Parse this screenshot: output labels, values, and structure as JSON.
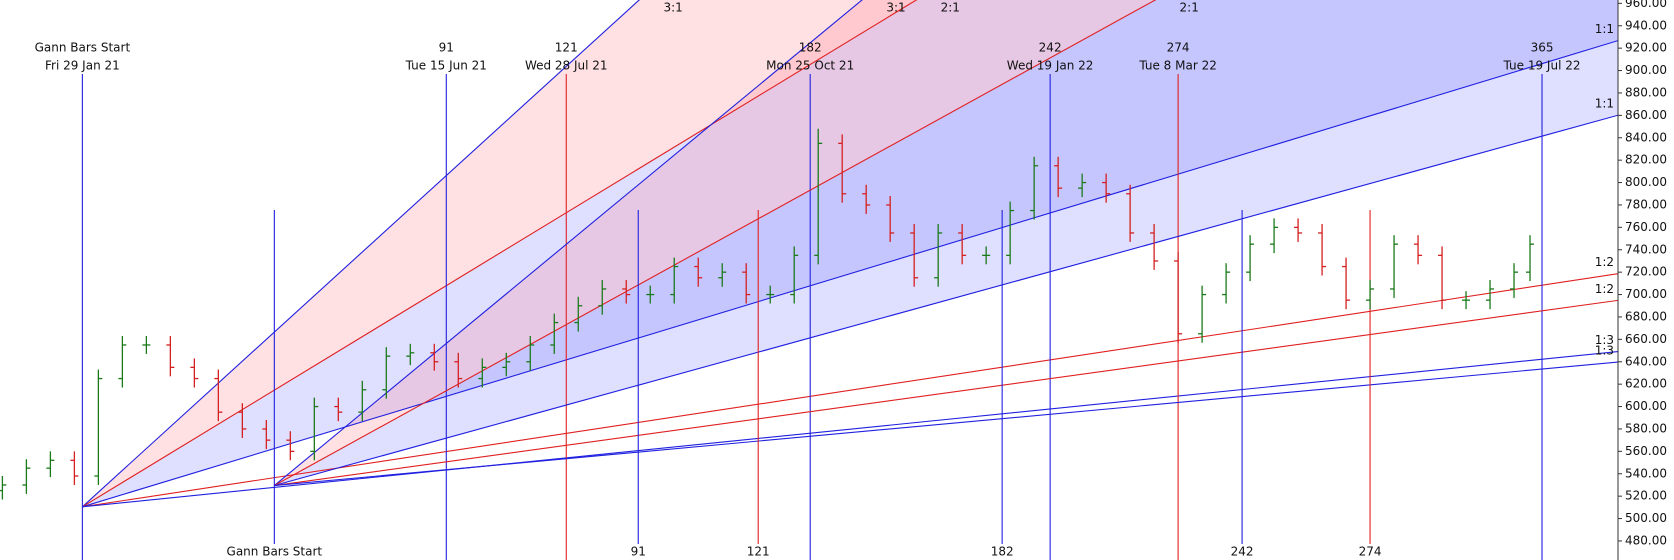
{
  "chart_data": {
    "type": "ohlc",
    "xlim": [
      -20.6,
      384
    ],
    "ylim": [
      463,
      963
    ],
    "yticks": [
      {
        "value": 480,
        "label": "480.00"
      },
      {
        "value": 500,
        "label": "500.00"
      },
      {
        "value": 520,
        "label": "520.00"
      },
      {
        "value": 540,
        "label": "540.00"
      },
      {
        "value": 560,
        "label": "560.00"
      },
      {
        "value": 580,
        "label": "580.00"
      },
      {
        "value": 600,
        "label": "600.00"
      },
      {
        "value": 620,
        "label": "620.00"
      },
      {
        "value": 640,
        "label": "640.00"
      },
      {
        "value": 660,
        "label": "660.00"
      },
      {
        "value": 680,
        "label": "680.00"
      },
      {
        "value": 700,
        "label": "700.00"
      },
      {
        "value": 720,
        "label": "720.00"
      },
      {
        "value": 740,
        "label": "740.00"
      },
      {
        "value": 760,
        "label": "760.00"
      },
      {
        "value": 780,
        "label": "780.00"
      },
      {
        "value": 800,
        "label": "800.00"
      },
      {
        "value": 820,
        "label": "820.00"
      },
      {
        "value": 840,
        "label": "840.00"
      },
      {
        "value": 860,
        "label": "860.00"
      },
      {
        "value": 880,
        "label": "880.00"
      },
      {
        "value": 900,
        "label": "900.00"
      },
      {
        "value": 920,
        "label": "920.00"
      },
      {
        "value": 940,
        "label": "940.00"
      },
      {
        "value": 960,
        "label": "960.00"
      }
    ],
    "up_color": "#1a7a1a",
    "down_color": "#d42020",
    "x": [
      -20,
      -14,
      -8,
      -2,
      4,
      10,
      16,
      22,
      28,
      34,
      40,
      46,
      52,
      58,
      64,
      70,
      76,
      82,
      88,
      94,
      100,
      106,
      112,
      118,
      124,
      130,
      136,
      142,
      148,
      154,
      160,
      166,
      172,
      178,
      184,
      190,
      196,
      202,
      208,
      214,
      220,
      226,
      232,
      238,
      244,
      250,
      256,
      262,
      268,
      274,
      280,
      286,
      292,
      298,
      304,
      310,
      316,
      322,
      328,
      334,
      340,
      346,
      352,
      358,
      362
    ],
    "open": [
      525,
      530,
      545,
      552,
      538,
      625,
      655,
      655,
      635,
      625,
      595,
      580,
      570,
      560,
      600,
      595,
      615,
      645,
      648,
      640,
      625,
      635,
      640,
      655,
      675,
      690,
      705,
      700,
      700,
      725,
      715,
      720,
      700,
      700,
      735,
      835,
      790,
      780,
      755,
      715,
      755,
      735,
      735,
      775,
      815,
      795,
      800,
      790,
      755,
      730,
      665,
      700,
      720,
      745,
      760,
      755,
      725,
      695,
      705,
      745,
      735,
      695,
      695,
      705,
      720
    ],
    "high": [
      538,
      553,
      560,
      560,
      633,
      663,
      663,
      663,
      643,
      633,
      603,
      588,
      578,
      608,
      608,
      623,
      653,
      656,
      656,
      648,
      643,
      648,
      663,
      683,
      698,
      713,
      713,
      708,
      733,
      733,
      728,
      728,
      708,
      743,
      848,
      843,
      798,
      788,
      763,
      763,
      763,
      743,
      783,
      823,
      823,
      808,
      808,
      798,
      763,
      738,
      708,
      728,
      753,
      768,
      768,
      763,
      733,
      713,
      753,
      753,
      743,
      703,
      713,
      728,
      753
    ],
    "low": [
      517,
      522,
      537,
      530,
      530,
      617,
      647,
      627,
      617,
      587,
      572,
      562,
      552,
      552,
      587,
      587,
      607,
      637,
      632,
      617,
      617,
      627,
      632,
      647,
      667,
      682,
      692,
      692,
      692,
      707,
      707,
      692,
      692,
      692,
      727,
      782,
      772,
      747,
      707,
      707,
      727,
      727,
      727,
      767,
      787,
      787,
      782,
      747,
      722,
      657,
      657,
      692,
      712,
      737,
      747,
      717,
      687,
      687,
      697,
      727,
      687,
      687,
      687,
      697,
      712
    ],
    "close": [
      530,
      545,
      552,
      538,
      625,
      655,
      655,
      635,
      625,
      595,
      580,
      570,
      560,
      600,
      595,
      615,
      645,
      648,
      640,
      625,
      635,
      640,
      655,
      675,
      690,
      705,
      700,
      700,
      725,
      715,
      720,
      700,
      700,
      735,
      835,
      790,
      780,
      755,
      715,
      755,
      735,
      735,
      775,
      815,
      795,
      800,
      790,
      755,
      730,
      665,
      700,
      720,
      745,
      760,
      755,
      725,
      695,
      705,
      745,
      735,
      695,
      695,
      705,
      720,
      745
    ],
    "fans": [
      {
        "start_x": 0,
        "start_y": 510.5,
        "label_position": "top",
        "lines": [
          {
            "label": "3:1",
            "slope": 3.25,
            "color": "#2020e0",
            "fill": "rgba(255,120,130,0.22)"
          },
          {
            "label": "2:1",
            "slope": 2.17,
            "color": "#e02020",
            "fill": "rgba(110,110,255,0.22)"
          },
          {
            "label": "1:1",
            "slope": 1.084,
            "color": "#2020e0"
          },
          {
            "label": "1:2",
            "slope": 0.542,
            "color": "#e02020"
          },
          {
            "label": "1:3",
            "slope": 0.361,
            "color": "#2020e0"
          }
        ],
        "verticals": [
          {
            "bar": {
              "value": 0,
              "label": "Gann Bars Start"
            },
            "date": "Fri 29 Jan 21",
            "color": "#2020e0"
          },
          {
            "bar": 91,
            "date": "Tue 15 Jun 21",
            "color": "#2020e0"
          },
          {
            "bar": 121,
            "date": "Wed 28 Jul 21",
            "color": "#e02020"
          },
          {
            "bar": 182,
            "date": "Mon 25 Oct 21",
            "color": "#2020e0"
          },
          {
            "bar": 242,
            "date": "Wed 19 Jan 22",
            "color": "#2020e0"
          },
          {
            "bar": 274,
            "date": "Tue 8 Mar 22",
            "color": "#e02020"
          },
          {
            "bar": 365,
            "date": "Tue 19 Jul 22",
            "color": "#2020e0"
          }
        ]
      },
      {
        "start_x": 48,
        "start_y": 529.5,
        "label_position": "bottom",
        "lines": [
          {
            "label": "3:1",
            "slope": 2.95,
            "color": "#2020e0",
            "fill": "rgba(255,120,130,0.22)"
          },
          {
            "label": "2:1",
            "slope": 1.968,
            "color": "#e02020",
            "fill": "rgba(110,110,255,0.22)"
          },
          {
            "label": "1:1",
            "slope": 0.984,
            "color": "#2020e0"
          },
          {
            "label": "1:2",
            "slope": 0.492,
            "color": "#e02020"
          },
          {
            "label": "1:3",
            "slope": 0.328,
            "color": "#2020e0"
          }
        ],
        "verticals": [
          {
            "bar": {
              "value": 0,
              "label": "Gann Bars Start"
            },
            "color": "#2020e0"
          },
          {
            "bar": 91,
            "color": "#2020e0"
          },
          {
            "bar": 121,
            "color": "#e02020"
          },
          {
            "bar": 182,
            "color": "#2020e0"
          },
          {
            "bar": 242,
            "color": "#2020e0"
          },
          {
            "bar": 274,
            "color": "#e02020"
          }
        ]
      }
    ]
  }
}
